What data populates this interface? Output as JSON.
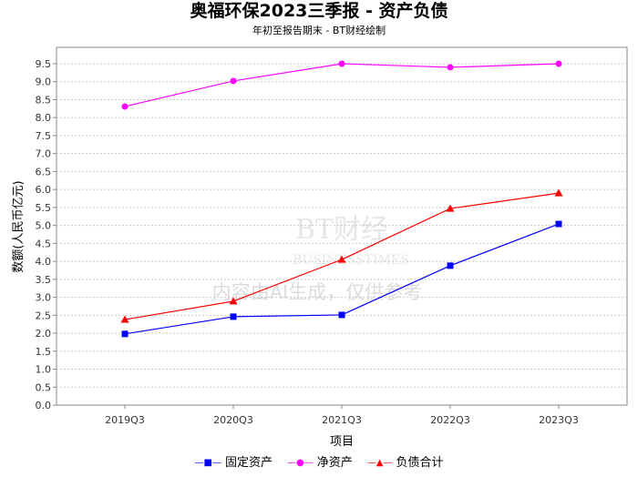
{
  "chart_data": {
    "type": "line",
    "title": "奥福环保2023三季报 - 资产负债",
    "subtitle": "年初至报告期末 - BT财经绘制",
    "xlabel": "项目",
    "ylabel": "数额(人民币亿元)",
    "categories": [
      "2019Q3",
      "2020Q3",
      "2021Q3",
      "2022Q3",
      "2023Q3"
    ],
    "ylim": [
      0,
      10
    ],
    "yticks": [
      "0.0",
      "0.5",
      "1.0",
      "1.5",
      "2.0",
      "2.5",
      "3.0",
      "3.5",
      "4.0",
      "4.5",
      "5.0",
      "5.5",
      "6.0",
      "6.5",
      "7.0",
      "7.5",
      "8.0",
      "8.5",
      "9.0",
      "9.5"
    ],
    "grid": true,
    "legend_position": "bottom",
    "series": [
      {
        "name": "固定资产",
        "color": "#0000ff",
        "marker": "square",
        "values": [
          1.98,
          2.46,
          2.51,
          3.88,
          5.04
        ]
      },
      {
        "name": "净资产",
        "color": "#ff00ff",
        "marker": "circle",
        "values": [
          8.31,
          9.02,
          9.5,
          9.4,
          9.5
        ]
      },
      {
        "name": "负债合计",
        "color": "#ff0000",
        "marker": "triangle",
        "values": [
          2.38,
          2.89,
          4.05,
          5.47,
          5.9
        ]
      }
    ],
    "watermark": [
      "BT财经",
      "BUSINESSTIMES",
      "内容由AI生成，仅供参考"
    ]
  }
}
